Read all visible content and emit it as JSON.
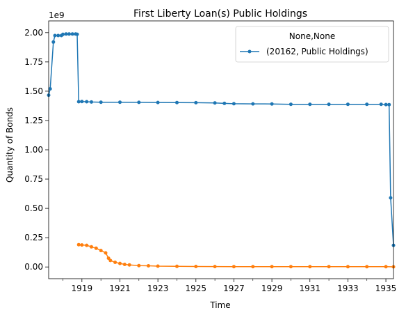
{
  "chart_data": {
    "type": "line",
    "title": "First Liberty Loan(s) Public Holdings",
    "xlabel": "Time",
    "ylabel": "Quantity of Bonds",
    "y_scale_label": "1e9",
    "xlim": [
      1917.25,
      1935.4
    ],
    "ylim": [
      -100000000,
      2100000000
    ],
    "x_major_ticks": [
      1919,
      1921,
      1923,
      1925,
      1927,
      1929,
      1931,
      1933,
      1935
    ],
    "x_minor_ticks": [
      1918,
      1920,
      1922,
      1924,
      1926,
      1928,
      1930,
      1932,
      1934
    ],
    "y_ticks": [
      0,
      250000000,
      500000000,
      750000000,
      1000000000,
      1250000000,
      1500000000,
      1750000000,
      2000000000
    ],
    "y_tick_labels": [
      "0.00",
      "0.25",
      "0.50",
      "0.75",
      "1.00",
      "1.25",
      "1.50",
      "1.75",
      "2.00"
    ],
    "legend": {
      "title": "None,None",
      "placement": "top-right",
      "entries": [
        "(20162, Public Holdings)"
      ]
    },
    "grid": false,
    "series": [
      {
        "name": "(20162, Public Holdings)",
        "color": "#1f77b4",
        "marker": "circle",
        "points": [
          [
            1917.25,
            1466000000
          ],
          [
            1917.33,
            1520000000
          ],
          [
            1917.5,
            1920000000
          ],
          [
            1917.58,
            1975000000
          ],
          [
            1917.75,
            1975000000
          ],
          [
            1917.92,
            1975000000
          ],
          [
            1918.0,
            1985000000
          ],
          [
            1918.17,
            1988000000
          ],
          [
            1918.33,
            1988000000
          ],
          [
            1918.5,
            1988000000
          ],
          [
            1918.67,
            1988000000
          ],
          [
            1918.75,
            1986000000
          ],
          [
            1918.83,
            1410000000
          ],
          [
            1919.0,
            1412000000
          ],
          [
            1919.25,
            1410000000
          ],
          [
            1919.5,
            1408000000
          ],
          [
            1920.0,
            1406000000
          ],
          [
            1921.0,
            1406000000
          ],
          [
            1922.0,
            1405000000
          ],
          [
            1923.0,
            1404000000
          ],
          [
            1924.0,
            1403000000
          ],
          [
            1925.0,
            1402000000
          ],
          [
            1926.0,
            1400000000
          ],
          [
            1926.5,
            1396000000
          ],
          [
            1927.0,
            1393000000
          ],
          [
            1928.0,
            1392000000
          ],
          [
            1929.0,
            1391000000
          ],
          [
            1930.0,
            1388000000
          ],
          [
            1931.0,
            1388000000
          ],
          [
            1932.0,
            1388000000
          ],
          [
            1933.0,
            1388000000
          ],
          [
            1934.0,
            1388000000
          ],
          [
            1934.75,
            1388000000
          ],
          [
            1935.0,
            1386000000
          ],
          [
            1935.17,
            1385000000
          ],
          [
            1935.25,
            590000000
          ],
          [
            1935.4,
            185000000
          ]
        ]
      },
      {
        "name": "",
        "color": "#ff7f0e",
        "marker": "circle",
        "points": [
          [
            1918.83,
            190000000
          ],
          [
            1919.0,
            188000000
          ],
          [
            1919.25,
            185000000
          ],
          [
            1919.5,
            172000000
          ],
          [
            1919.75,
            160000000
          ],
          [
            1920.0,
            140000000
          ],
          [
            1920.25,
            120000000
          ],
          [
            1920.4,
            75000000
          ],
          [
            1920.5,
            55000000
          ],
          [
            1920.75,
            40000000
          ],
          [
            1921.0,
            30000000
          ],
          [
            1921.25,
            22000000
          ],
          [
            1921.5,
            18000000
          ],
          [
            1922.0,
            12000000
          ],
          [
            1922.5,
            10000000
          ],
          [
            1923.0,
            7000000
          ],
          [
            1924.0,
            5000000
          ],
          [
            1925.0,
            4000000
          ],
          [
            1926.0,
            3500000
          ],
          [
            1927.0,
            3000000
          ],
          [
            1928.0,
            3000000
          ],
          [
            1929.0,
            2800000
          ],
          [
            1930.0,
            2800000
          ],
          [
            1931.0,
            2700000
          ],
          [
            1932.0,
            2600000
          ],
          [
            1933.0,
            2500000
          ],
          [
            1934.0,
            2500000
          ],
          [
            1935.0,
            2400000
          ],
          [
            1935.4,
            1000000
          ]
        ]
      }
    ]
  }
}
